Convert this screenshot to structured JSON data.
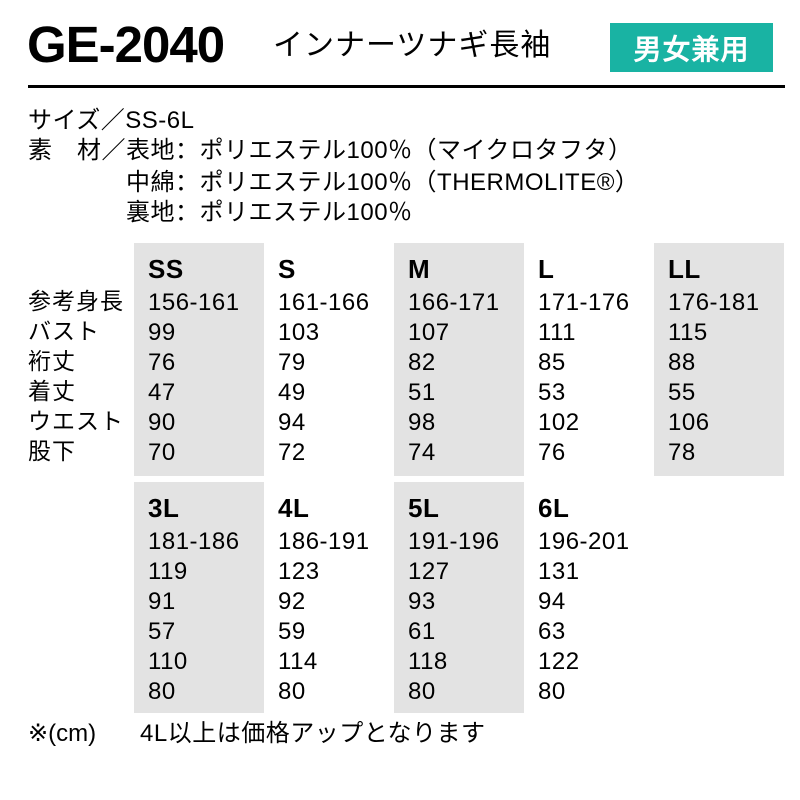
{
  "header": {
    "product_code": "GE-2040",
    "product_name": "インナーツナギ長袖",
    "badge_label": "男女兼用",
    "badge_color": "#19b3a3"
  },
  "specs": {
    "size_line": "サイズ／SS-6L",
    "material_line": "素　材／表地：ポリエステル100％（マイクロタフタ）",
    "padding_line": "中綿：ポリエステル100％（THERMOLITE®）",
    "lining_line": "裏地：ポリエステル100％"
  },
  "size_chart": {
    "shade_color": "#e3e3e3",
    "row_labels": [
      "参考身長",
      "バスト",
      "裄丈",
      "着丈",
      "ウエスト",
      "股下"
    ],
    "table1": {
      "columns": [
        {
          "label": "SS",
          "shaded": true,
          "values": [
            "156-161",
            "99",
            "76",
            "47",
            "90",
            "70"
          ]
        },
        {
          "label": "S",
          "shaded": false,
          "values": [
            "161-166",
            "103",
            "79",
            "49",
            "94",
            "72"
          ]
        },
        {
          "label": "M",
          "shaded": true,
          "values": [
            "166-171",
            "107",
            "82",
            "51",
            "98",
            "74"
          ]
        },
        {
          "label": "L",
          "shaded": false,
          "values": [
            "171-176",
            "111",
            "85",
            "53",
            "102",
            "76"
          ]
        },
        {
          "label": "LL",
          "shaded": true,
          "values": [
            "176-181",
            "115",
            "88",
            "55",
            "106",
            "78"
          ]
        }
      ]
    },
    "table2": {
      "columns": [
        {
          "label": "3L",
          "shaded": true,
          "values": [
            "181-186",
            "119",
            "91",
            "57",
            "110",
            "80"
          ]
        },
        {
          "label": "4L",
          "shaded": false,
          "values": [
            "186-191",
            "123",
            "92",
            "59",
            "114",
            "80"
          ]
        },
        {
          "label": "5L",
          "shaded": true,
          "values": [
            "191-196",
            "127",
            "93",
            "61",
            "118",
            "80"
          ]
        },
        {
          "label": "6L",
          "shaded": false,
          "values": [
            "196-201",
            "131",
            "94",
            "63",
            "122",
            "80"
          ]
        }
      ]
    }
  },
  "footer": {
    "unit_note": "※(cm)",
    "price_note": "4L以上は価格アップとなります"
  }
}
